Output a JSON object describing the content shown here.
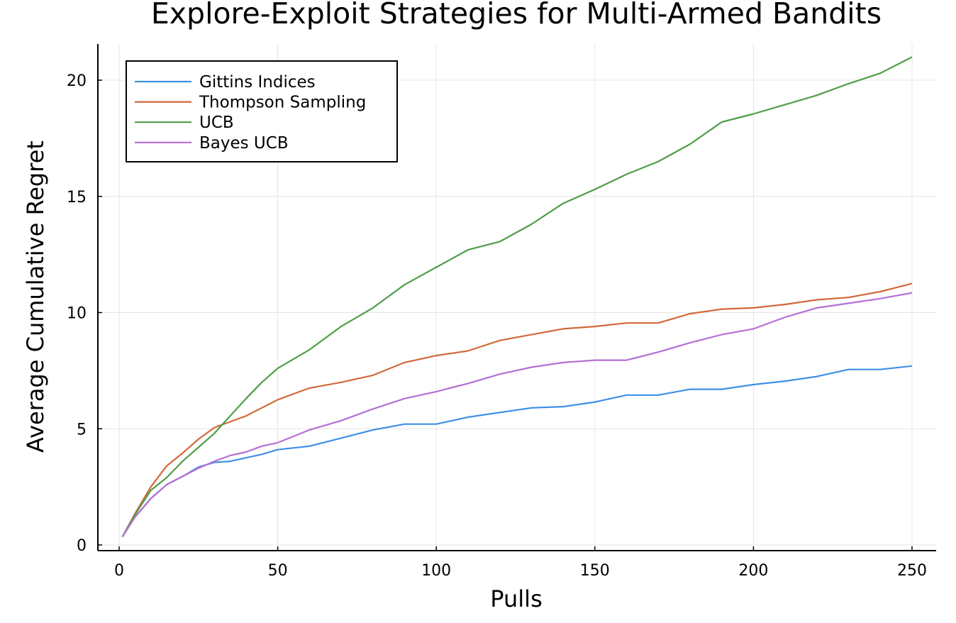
{
  "chart_data": {
    "type": "line",
    "title": "Explore-Exploit Strategies for Multi-Armed Bandits",
    "xlabel": "Pulls",
    "ylabel": "Average Cumulative Regret",
    "xlim": [
      0,
      250
    ],
    "ylim": [
      0,
      21
    ],
    "xticks": [
      0,
      50,
      100,
      150,
      200,
      250
    ],
    "yticks": [
      0,
      5,
      10,
      15,
      20
    ],
    "grid": true,
    "legend_position": "top-left",
    "x": [
      1,
      5,
      10,
      15,
      20,
      25,
      30,
      35,
      40,
      45,
      50,
      60,
      70,
      80,
      90,
      100,
      110,
      120,
      130,
      140,
      150,
      160,
      170,
      180,
      190,
      200,
      210,
      220,
      230,
      240,
      250
    ],
    "series": [
      {
        "name": "Gittins Indices",
        "color": "#3f8fe6",
        "values": [
          0.35,
          1.2,
          2.0,
          2.6,
          2.95,
          3.35,
          3.55,
          3.6,
          3.75,
          3.9,
          4.1,
          4.25,
          4.6,
          4.95,
          5.2,
          5.2,
          5.5,
          5.7,
          5.9,
          5.95,
          6.15,
          6.45,
          6.45,
          6.7,
          6.7,
          6.9,
          7.05,
          7.25,
          7.55,
          7.55,
          7.7
        ]
      },
      {
        "name": "Thompson Sampling",
        "color": "#d2693a",
        "values": [
          0.35,
          1.35,
          2.5,
          3.4,
          3.95,
          4.55,
          5.05,
          5.3,
          5.55,
          5.9,
          6.25,
          6.75,
          7.0,
          7.3,
          7.85,
          8.15,
          8.35,
          8.8,
          9.05,
          9.3,
          9.4,
          9.55,
          9.55,
          9.95,
          10.15,
          10.2,
          10.35,
          10.55,
          10.65,
          10.9,
          11.25
        ]
      },
      {
        "name": "UCB",
        "color": "#4f9e47",
        "values": [
          0.35,
          1.3,
          2.35,
          2.9,
          3.6,
          4.2,
          4.8,
          5.55,
          6.3,
          7.0,
          7.6,
          8.4,
          9.4,
          10.2,
          11.2,
          11.95,
          12.7,
          13.05,
          13.8,
          14.7,
          15.3,
          15.95,
          16.5,
          17.25,
          18.2,
          18.55,
          18.95,
          19.35,
          19.85,
          20.3,
          21.0
        ]
      },
      {
        "name": "Bayes UCB",
        "color": "#b56fd5",
        "values": [
          0.35,
          1.2,
          2.0,
          2.6,
          2.95,
          3.3,
          3.6,
          3.85,
          4.0,
          4.25,
          4.4,
          4.95,
          5.35,
          5.85,
          6.3,
          6.6,
          6.95,
          7.35,
          7.65,
          7.85,
          7.95,
          7.95,
          8.3,
          8.7,
          9.05,
          9.3,
          9.8,
          10.2,
          10.4,
          10.6,
          10.85
        ]
      }
    ]
  }
}
